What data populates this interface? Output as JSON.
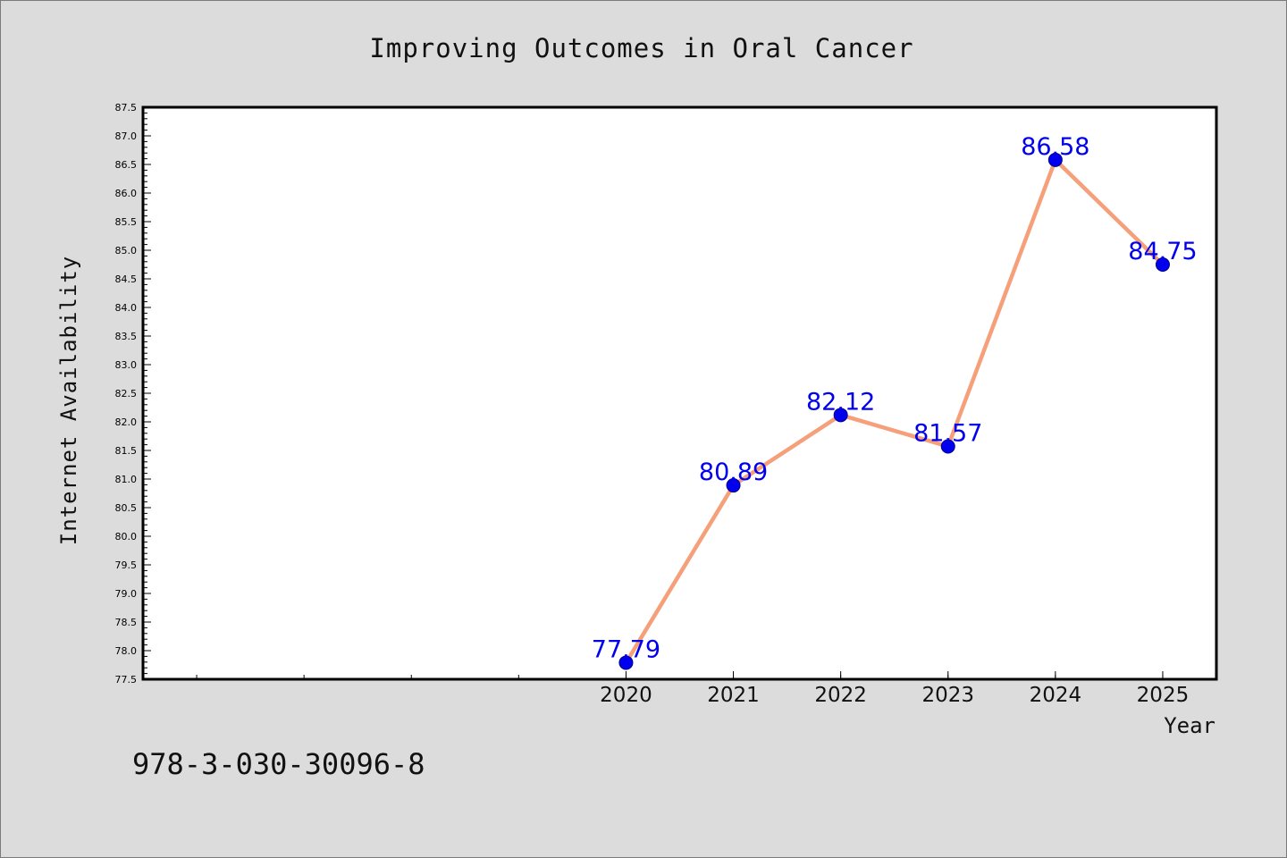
{
  "chart_data": {
    "type": "line",
    "title": "Improving Outcomes in Oral Cancer",
    "xlabel": "Year",
    "ylabel": "Internet Availability",
    "x": [
      2020,
      2021,
      2022,
      2023,
      2024,
      2025
    ],
    "x_tick_labels": [
      "2020",
      "2021",
      "2022",
      "2023",
      "2024",
      "2025"
    ],
    "xlim": [
      2015.5,
      2025.5
    ],
    "ylim": [
      77.5,
      87.5
    ],
    "y_ticks": [
      "77.5",
      "78.0",
      "78.5",
      "79.0",
      "79.5",
      "80.0",
      "80.5",
      "81.0",
      "81.5",
      "82.0",
      "82.5",
      "83.0",
      "83.5",
      "84.0",
      "84.5",
      "85.0",
      "85.5",
      "86.0",
      "86.5",
      "87.0",
      "87.5"
    ],
    "series": [
      {
        "values": [
          77.79,
          80.89,
          82.12,
          81.57,
          86.58,
          84.75
        ],
        "labels": [
          "77.79",
          "80.89",
          "82.12",
          "81.57",
          "86.58",
          "84.75"
        ]
      }
    ],
    "grid": false,
    "legend": "none",
    "colors": {
      "line": "#f5a07a",
      "marker": "#0000ee",
      "data_label": "#0000ee",
      "background": "#dcdcdc",
      "plot_area": "#ffffff"
    }
  },
  "footer": {
    "isbn": "978-3-030-30096-8"
  }
}
